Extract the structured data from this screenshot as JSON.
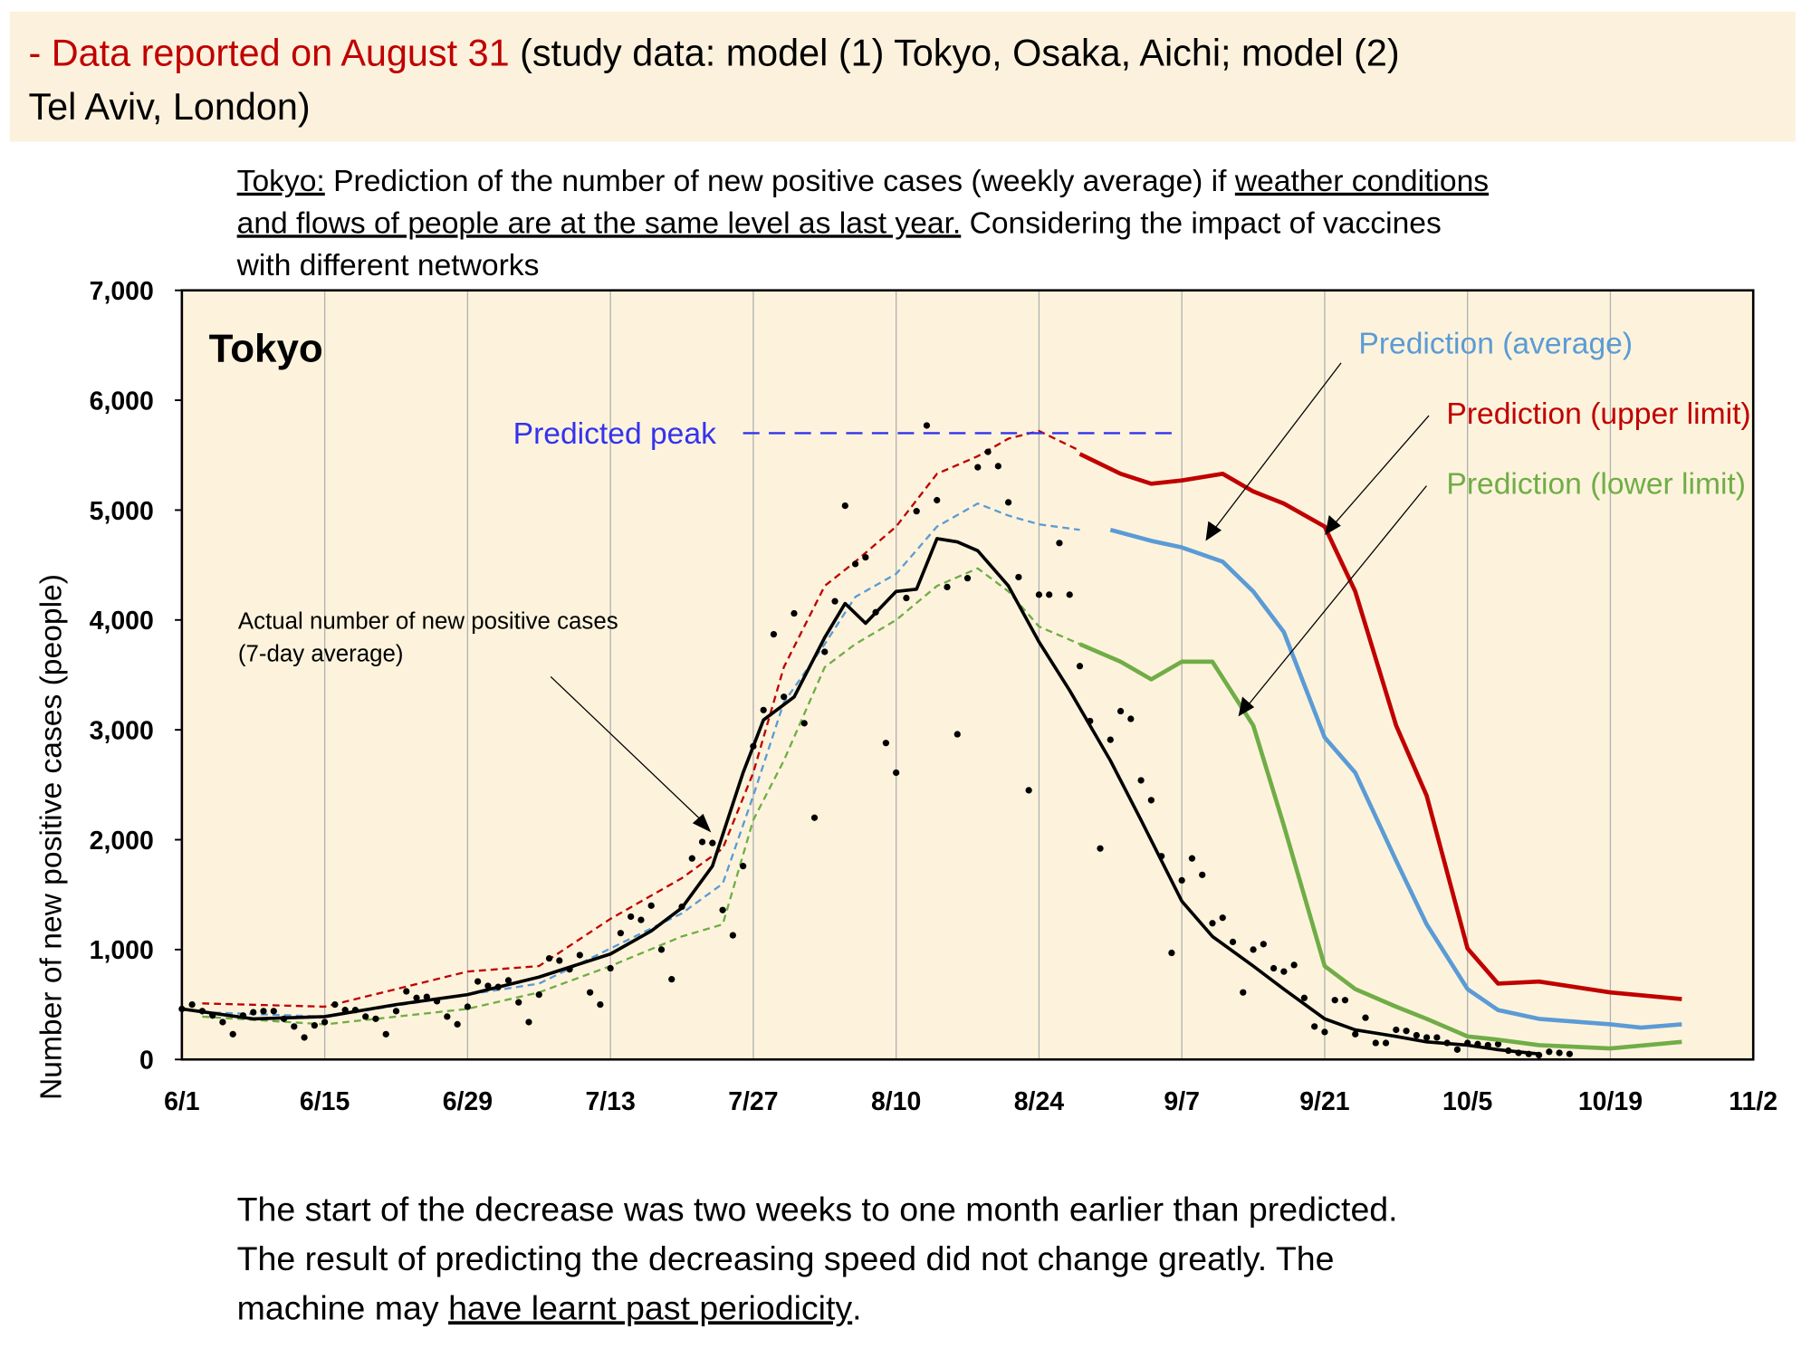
{
  "header": {
    "lines": [
      [
        {
          "text": "- Data reported on August 31",
          "color": "#c00000"
        },
        {
          "text": " (study data: model (1) Tokyo, Osaka, Aichi; model (2)",
          "color": "#000000"
        }
      ],
      [
        {
          "text": "Tel Aviv, London)",
          "color": "#000000"
        }
      ]
    ]
  },
  "subtitle": {
    "lines": [
      [
        {
          "text": "Tokyo:",
          "underline": true
        },
        {
          "text": " Prediction of the number of new positive cases (weekly average) if ",
          "underline": false
        },
        {
          "text": "weather conditions",
          "underline": true
        }
      ],
      [
        {
          "text": "and flows of people are at the same level as last year.",
          "underline": true
        },
        {
          "text": " Considering the impact of vaccines",
          "underline": false
        }
      ],
      [
        {
          "text": "with different networks",
          "underline": false
        }
      ]
    ]
  },
  "caption": {
    "lines": [
      [
        {
          "text": "The start of the decrease was two weeks to one month earlier than predicted.",
          "underline": false
        }
      ],
      [
        {
          "text": "The result of predicting the decreasing speed did not change greatly. The",
          "underline": false
        }
      ],
      [
        {
          "text": "machine may ",
          "underline": false
        },
        {
          "text": "have learnt past periodicity",
          "underline": true
        },
        {
          "text": ".",
          "underline": false
        }
      ]
    ]
  },
  "chart_data": {
    "type": "line",
    "title": "Tokyo",
    "ylabel": "Number of new positive cases (people)",
    "xlim": [
      "6/1",
      "11/2"
    ],
    "xticks": [
      "6/1",
      "6/15",
      "6/29",
      "7/13",
      "7/27",
      "8/10",
      "8/24",
      "9/7",
      "9/21",
      "10/5",
      "10/19",
      "11/2"
    ],
    "ylim": [
      0,
      7000
    ],
    "yticks": [
      0,
      {
        "value": 1000,
        "label": "1,000"
      },
      {
        "value": 2000,
        "label": "2,000"
      },
      {
        "value": 3000,
        "label": "3,000"
      },
      {
        "value": 4000,
        "label": "4,000"
      },
      {
        "value": 5000,
        "label": "5,000"
      },
      {
        "value": 6000,
        "label": "6,000"
      },
      {
        "value": 7000,
        "label": "7,000"
      }
    ],
    "grid": "x",
    "series": [
      {
        "name": "Prediction (average)",
        "color": "#5b9bd5",
        "x": [
          "8/31",
          "9/4",
          "9/7",
          "9/11",
          "9/14",
          "9/17",
          "9/21",
          "9/24",
          "9/28",
          "10/1",
          "10/5",
          "10/8",
          "10/12",
          "10/19",
          "10/22",
          "10/26"
        ],
        "values": [
          4820,
          4720,
          4660,
          4530,
          4260,
          3890,
          2930,
          2610,
          1810,
          1230,
          640,
          450,
          370,
          320,
          290,
          320
        ]
      },
      {
        "name": "Prediction (upper limit)",
        "color": "#c00000",
        "x": [
          "8/28",
          "9/1",
          "9/4",
          "9/7",
          "9/11",
          "9/14",
          "9/17",
          "9/21",
          "9/24",
          "9/28",
          "10/1",
          "10/5",
          "10/8",
          "10/12",
          "10/19",
          "10/26"
        ],
        "values": [
          5510,
          5330,
          5240,
          5270,
          5330,
          5170,
          5060,
          4850,
          4260,
          3040,
          2400,
          1010,
          690,
          710,
          610,
          550
        ]
      },
      {
        "name": "Prediction (lower limit)",
        "color": "#70ad47",
        "x": [
          "8/28",
          "9/1",
          "9/4",
          "9/7",
          "9/10",
          "9/14",
          "9/17",
          "9/21",
          "9/24",
          "9/28",
          "10/1",
          "10/5",
          "10/8",
          "10/12",
          "10/19",
          "10/26"
        ],
        "values": [
          3780,
          3620,
          3460,
          3620,
          3620,
          3040,
          2130,
          850,
          640,
          480,
          370,
          210,
          180,
          130,
          100,
          160
        ]
      }
    ],
    "past_predictions": [
      {
        "color": "#c00000",
        "dash": true,
        "x": [
          "6/3",
          "6/15",
          "6/29",
          "7/6",
          "7/13",
          "7/20",
          "7/24",
          "7/27",
          "7/30",
          "8/3",
          "8/6",
          "8/10",
          "8/14",
          "8/18",
          "8/21",
          "8/24",
          "8/28"
        ],
        "values": [
          510,
          480,
          800,
          850,
          1280,
          1650,
          1920,
          2610,
          3570,
          4310,
          4530,
          4850,
          5330,
          5490,
          5650,
          5720,
          5540
        ]
      },
      {
        "color": "#5b9bd5",
        "dash": true,
        "x": [
          "6/3",
          "6/15",
          "6/29",
          "7/6",
          "7/13",
          "7/20",
          "7/24",
          "7/27",
          "7/30",
          "8/3",
          "8/6",
          "8/10",
          "8/14",
          "8/18",
          "8/21",
          "8/24",
          "8/28"
        ],
        "values": [
          430,
          390,
          590,
          690,
          1010,
          1330,
          1600,
          2400,
          3250,
          3780,
          4210,
          4420,
          4850,
          5060,
          4950,
          4870,
          4820
        ]
      },
      {
        "color": "#70ad47",
        "dash": true,
        "x": [
          "6/3",
          "6/15",
          "6/29",
          "7/6",
          "7/13",
          "7/20",
          "7/24",
          "7/27",
          "7/30",
          "8/3",
          "8/6",
          "8/10",
          "8/14",
          "8/18",
          "8/21",
          "8/24",
          "8/28"
        ],
        "values": [
          390,
          320,
          460,
          610,
          850,
          1120,
          1230,
          2180,
          2720,
          3570,
          3780,
          4000,
          4310,
          4470,
          4260,
          3940,
          3780
        ]
      }
    ],
    "actual": {
      "color": "#000000",
      "x": [
        "6/1",
        "6/8",
        "6/15",
        "6/22",
        "6/29",
        "7/6",
        "7/13",
        "7/17",
        "7/20",
        "7/23",
        "7/26",
        "7/28",
        "7/31",
        "8/3",
        "8/5",
        "8/7",
        "8/10",
        "8/12",
        "8/14",
        "8/16",
        "8/18",
        "8/21",
        "8/24",
        "8/27",
        "8/31",
        "9/3",
        "9/7",
        "9/10",
        "9/14",
        "9/17",
        "9/21",
        "9/24",
        "9/28",
        "10/1",
        "10/5",
        "10/8",
        "10/12"
      ],
      "values": [
        460,
        370,
        390,
        500,
        590,
        750,
        960,
        1170,
        1380,
        1760,
        2610,
        3090,
        3300,
        3840,
        4150,
        3970,
        4260,
        4280,
        4740,
        4710,
        4630,
        4310,
        3800,
        3360,
        2720,
        2180,
        1440,
        1120,
        850,
        640,
        370,
        270,
        210,
        160,
        130,
        90,
        50
      ]
    },
    "points": {
      "color": "#000000",
      "x": [
        "6/1",
        "6/2",
        "6/3",
        "6/4",
        "6/5",
        "6/6",
        "6/7",
        "6/8",
        "6/9",
        "6/10",
        "6/11",
        "6/12",
        "6/13",
        "6/14",
        "6/15",
        "6/16",
        "6/17",
        "6/18",
        "6/19",
        "6/20",
        "6/21",
        "6/22",
        "6/23",
        "6/24",
        "6/25",
        "6/26",
        "6/27",
        "6/28",
        "6/29",
        "6/30",
        "7/1",
        "7/2",
        "7/3",
        "7/4",
        "7/5",
        "7/6",
        "7/7",
        "7/8",
        "7/9",
        "7/10",
        "7/11",
        "7/12",
        "7/13",
        "7/14",
        "7/15",
        "7/16",
        "7/17",
        "7/18",
        "7/19",
        "7/20",
        "7/21",
        "7/22",
        "7/23",
        "7/24",
        "7/25",
        "7/26",
        "7/27",
        "7/28",
        "7/29",
        "7/30",
        "7/31",
        "8/1",
        "8/2",
        "8/3",
        "8/4",
        "8/5",
        "8/6",
        "8/7",
        "8/8",
        "8/9",
        "8/10",
        "8/11",
        "8/12",
        "8/13",
        "8/14",
        "8/15",
        "8/16",
        "8/17",
        "8/18",
        "8/19",
        "8/20",
        "8/21",
        "8/22",
        "8/23",
        "8/24",
        "8/25",
        "8/26",
        "8/27",
        "8/28",
        "8/29",
        "8/30",
        "8/31",
        "9/1",
        "9/2",
        "9/3",
        "9/4",
        "9/5",
        "9/6",
        "9/7",
        "9/8",
        "9/9",
        "9/10",
        "9/11",
        "9/12",
        "9/13",
        "9/14",
        "9/15",
        "9/16",
        "9/17",
        "9/18",
        "9/19",
        "9/20",
        "9/21",
        "9/22",
        "9/23",
        "9/24",
        "9/25",
        "9/26",
        "9/27",
        "9/28",
        "9/29",
        "9/30",
        "10/1",
        "10/2",
        "10/3",
        "10/4",
        "10/5",
        "10/6",
        "10/7",
        "10/8",
        "10/9",
        "10/10",
        "10/11",
        "10/12",
        "10/13",
        "10/14",
        "10/15"
      ],
      "values": [
        460,
        500,
        440,
        400,
        340,
        230,
        400,
        430,
        440,
        440,
        370,
        300,
        200,
        310,
        340,
        500,
        450,
        450,
        390,
        370,
        230,
        440,
        620,
        560,
        570,
        530,
        390,
        320,
        480,
        710,
        670,
        660,
        720,
        520,
        340,
        590,
        920,
        900,
        820,
        950,
        610,
        500,
        830,
        1150,
        1300,
        1270,
        1400,
        1000,
        730,
        1390,
        1830,
        1980,
        1970,
        1360,
        1130,
        1760,
        2850,
        3180,
        3870,
        3300,
        4060,
        3060,
        2200,
        3710,
        4170,
        5040,
        4510,
        4570,
        4070,
        2880,
        2610,
        4200,
        4990,
        5770,
        5090,
        4300,
        2960,
        4380,
        5390,
        5530,
        5400,
        5070,
        4390,
        2450,
        4230,
        4230,
        4700,
        4230,
        3580,
        3080,
        1920,
        2910,
        3170,
        3100,
        2540,
        2360,
        1850,
        970,
        1630,
        1830,
        1680,
        1240,
        1290,
        1070,
        610,
        1000,
        1050,
        830,
        800,
        860,
        560,
        300,
        250,
        540,
        540,
        230,
        380,
        150,
        150,
        270,
        260,
        220,
        200,
        200,
        150,
        90,
        150,
        140,
        130,
        140,
        80,
        60,
        50,
        40,
        70,
        60,
        50
      ]
    },
    "peak": {
      "label": "Predicted peak",
      "value": 5700,
      "x": [
        "7/26",
        "9/6"
      ],
      "color": "#3333ee"
    },
    "annotations": [
      "Actual number of new positive cases",
      "(7-day average)"
    ]
  }
}
